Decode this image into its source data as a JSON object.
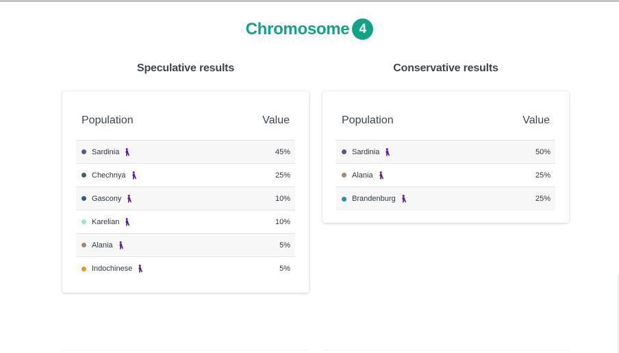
{
  "header": {
    "title": "Chromosome",
    "chromosome_number": "4",
    "accent_color": "#12a386"
  },
  "speculative": {
    "title": "Speculative results",
    "col_population": "Population",
    "col_value": "Value",
    "rows": [
      {
        "name": "Sardinia",
        "value": "45%",
        "color": "#4c5899",
        "icon": "human-figure-icon"
      },
      {
        "name": "Chechnya",
        "value": "25%",
        "color": "#2f6b5f",
        "icon": "human-figure-icon"
      },
      {
        "name": "Gascony",
        "value": "10%",
        "color": "#2d5f8f",
        "icon": "human-figure-icon"
      },
      {
        "name": "Karelian",
        "value": "10%",
        "color": "#94e8d3",
        "icon": "human-figure-icon"
      },
      {
        "name": "Alania",
        "value": "5%",
        "color": "#a18a7a",
        "icon": "human-figure-icon"
      },
      {
        "name": "Indochinese",
        "value": "5%",
        "color": "#e39a22",
        "icon": "human-figure-icon"
      }
    ]
  },
  "conservative": {
    "title": "Conservative results",
    "col_population": "Population",
    "col_value": "Value",
    "rows": [
      {
        "name": "Sardinia",
        "value": "50%",
        "color": "#4c5899",
        "icon": "human-figure-icon"
      },
      {
        "name": "Alania",
        "value": "25%",
        "color": "#a18a7a",
        "icon": "human-figure-icon"
      },
      {
        "name": "Brandenburg",
        "value": "25%",
        "color": "#1f8cc4",
        "icon": "human-figure-icon"
      }
    ]
  }
}
